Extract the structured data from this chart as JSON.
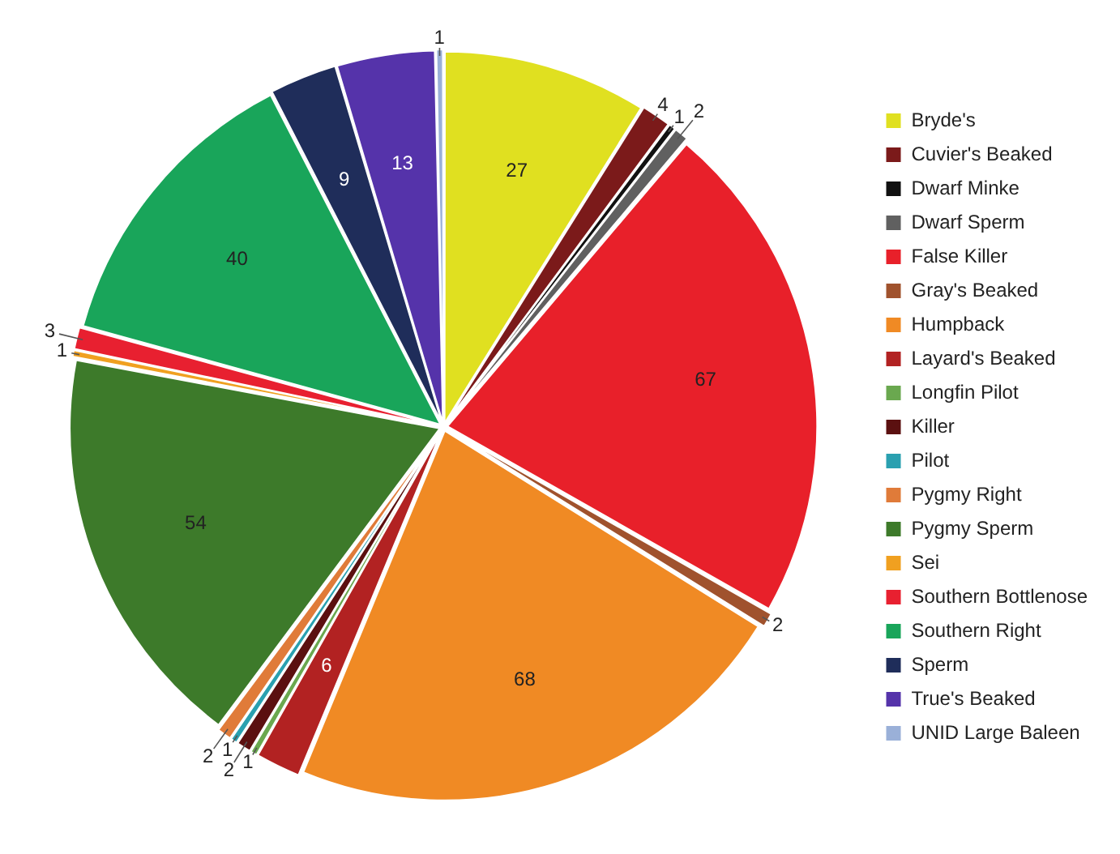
{
  "chart_data": {
    "type": "pie",
    "categories": [
      "Bryde's",
      "Cuvier's Beaked",
      "Dwarf Minke",
      "Dwarf Sperm",
      "False Killer",
      "Gray's Beaked",
      "Humpback",
      "Layard's Beaked",
      "Longfin Pilot",
      "Killer",
      "Pilot",
      "Pygmy Right",
      "Pygmy Sperm",
      "Sei",
      "Southern Bottlenose",
      "Southern Right",
      "Sperm",
      "True's Beaked",
      "UNID Large Baleen"
    ],
    "values": [
      27,
      4,
      1,
      2,
      67,
      2,
      68,
      6,
      1,
      2,
      1,
      2,
      54,
      1,
      3,
      40,
      9,
      13,
      1
    ],
    "colors": [
      "#e0e020",
      "#7b1a1a",
      "#111111",
      "#606060",
      "#e8202a",
      "#a0522d",
      "#f08a24",
      "#b22222",
      "#6aa84f",
      "#5b1010",
      "#2aa0b0",
      "#e07b39",
      "#3d7a2a",
      "#f0a020",
      "#e82030",
      "#19a55a",
      "#1f2d5a",
      "#5533aa",
      "#9ab0d8"
    ],
    "data_labels": true,
    "legend": "right"
  }
}
